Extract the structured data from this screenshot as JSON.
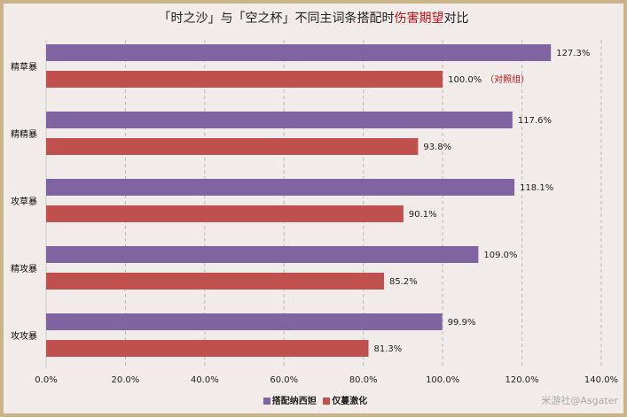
{
  "chart_data": {
    "type": "bar",
    "orientation": "horizontal",
    "title_parts": [
      "「时之沙」与「空之杯」不同主词条搭配时",
      "伤害期望",
      "对比"
    ],
    "categories": [
      "精草暴",
      "精精暴",
      "攻草暴",
      "精攻暴",
      "攻攻暴"
    ],
    "series": [
      {
        "name": "搭配纳西妲",
        "color": "#8064a2",
        "values": [
          127.3,
          117.6,
          118.1,
          109.0,
          99.9
        ]
      },
      {
        "name": "仅蔓激化",
        "color": "#c0504d",
        "values": [
          100.0,
          93.8,
          90.1,
          85.2,
          81.3
        ]
      }
    ],
    "annotation": "（对照组）",
    "annotation_color": "#c0101a",
    "xlim": [
      0,
      140
    ],
    "xticks": [
      "0.0%",
      "20.0%",
      "40.0%",
      "60.0%",
      "80.0%",
      "100.0%",
      "120.0%",
      "140.0%"
    ],
    "grid": true,
    "legend_position": "bottom"
  },
  "watermark": "米游社@Asgater"
}
